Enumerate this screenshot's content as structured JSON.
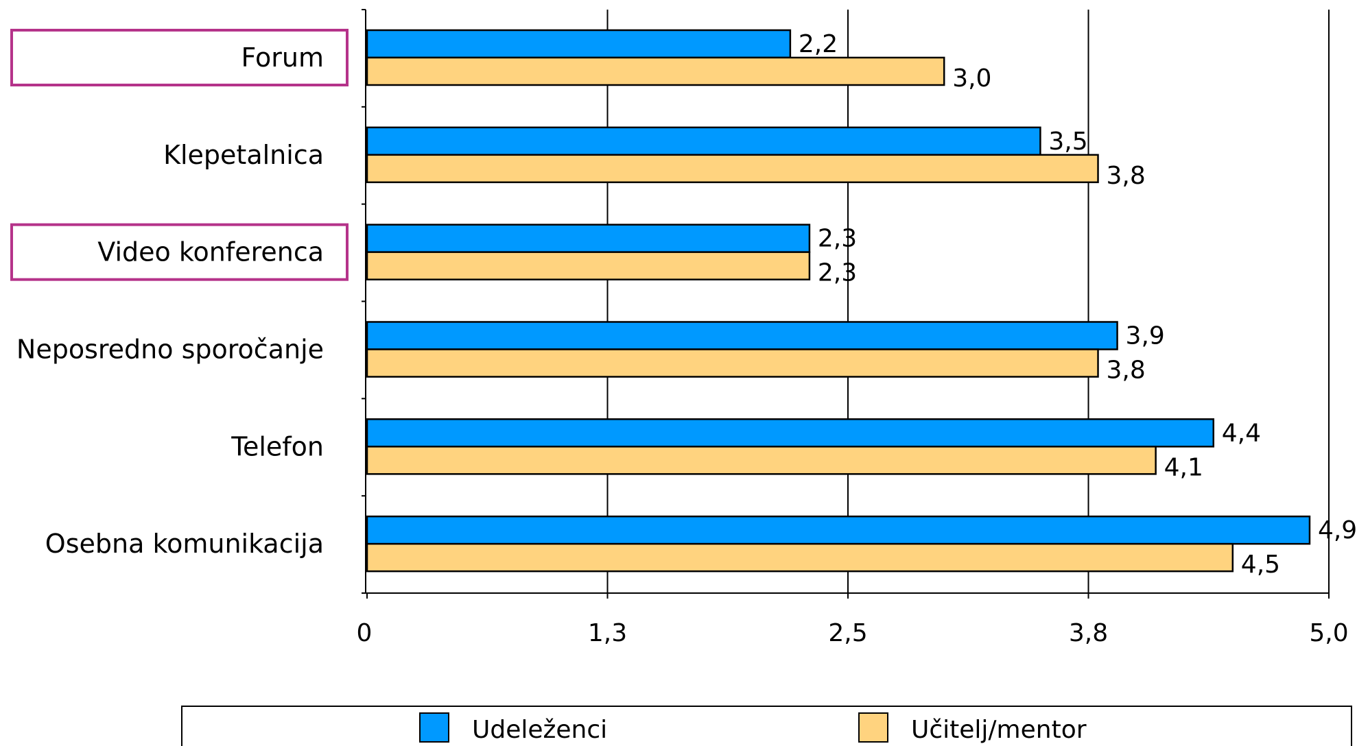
{
  "chart_data": {
    "type": "bar",
    "orientation": "horizontal",
    "categories": [
      "Forum",
      "Klepetalnica",
      "Video konferenca",
      "Neposredno sporočanje",
      "Telefon",
      "Osebna komunikacija"
    ],
    "highlighted_categories": [
      "Forum",
      "Video konferenca"
    ],
    "series": [
      {
        "name": "Udeleženci",
        "color": "#0099ff",
        "values": [
          2.2,
          3.5,
          2.3,
          3.9,
          4.4,
          4.9
        ],
        "labels": [
          "2,2",
          "3,5",
          "2,3",
          "3,9",
          "4,4",
          "4,9"
        ]
      },
      {
        "name": "Učitelj/mentor",
        "color": "#ffd37f",
        "values": [
          3.0,
          3.8,
          2.3,
          3.8,
          4.1,
          4.5
        ],
        "labels": [
          "3,0",
          "3,8",
          "2,3",
          "3,8",
          "4,1",
          "4,5"
        ]
      }
    ],
    "xlim": [
      0,
      5.0
    ],
    "x_ticks": [
      0,
      1.25,
      2.5,
      3.75,
      5.0
    ],
    "x_tick_labels": [
      "0",
      "1,3",
      "2,5",
      "3,8",
      "5,0"
    ],
    "grid": true,
    "legend_position": "bottom",
    "highlight_color": "#b5338a",
    "title": "",
    "xlabel": "",
    "ylabel": ""
  }
}
